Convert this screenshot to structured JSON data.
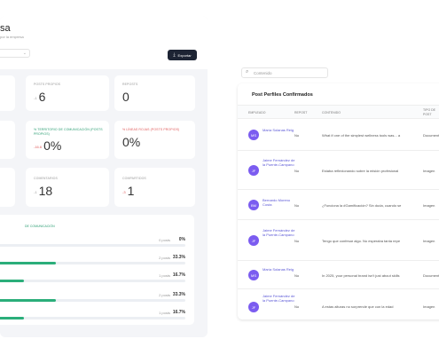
{
  "left": {
    "title": "sa",
    "subtitle": "por la empresa",
    "export_label": "Exportar",
    "export_icon": "download-icon",
    "cards": [
      {
        "label": "",
        "value": "",
        "delta": ""
      },
      {
        "label": "POSTS PROPIOS",
        "value": "6",
        "delta": "-1"
      },
      {
        "label": "REPOSTS",
        "value": "0",
        "delta": ""
      },
      {
        "label": "",
        "value": "",
        "delta": ""
      },
      {
        "label": "% TERRITORIO DE COMUNICACIÓN (POSTS PROPIOS)",
        "value": "0%",
        "delta": "-16.6"
      },
      {
        "label": "% LÍNEAS ROJAS (POSTS PROPIOS)",
        "value": "0%",
        "delta": ""
      },
      {
        "label": "",
        "value": "",
        "delta": ""
      },
      {
        "label": "COMENTARIOS",
        "value": "18",
        "delta": "-1"
      },
      {
        "label": "COMPARTIDOS",
        "value": "1",
        "delta": "-3"
      }
    ],
    "distribution": {
      "title": "DE COMUNICACIÓN",
      "rows": [
        {
          "posts": "0 posts",
          "pct": "0%",
          "fill": 0
        },
        {
          "posts": "2 posts",
          "pct": "33.3%",
          "fill": 0.333
        },
        {
          "posts": "1 posts",
          "pct": "16.7%",
          "fill": 0.167
        },
        {
          "posts": "2 posts",
          "pct": "33.3%",
          "fill": 0.333
        },
        {
          "posts": "1 posts",
          "pct": "16.7%",
          "fill": 0.167
        }
      ]
    }
  },
  "right": {
    "search_placeholder": "Contenido",
    "search_icon": "search-icon",
    "table_title": "Post Perfiles Confirmados",
    "columns": [
      "EMPLEADO",
      "REPOST",
      "CONTENIDO",
      "TIPO DE POST"
    ],
    "rows": [
      {
        "initials": "MS",
        "name": "María Solanas Reig",
        "repost": "No",
        "content": "What if one of the simplest wellness tools was... a",
        "type": "Documento"
      },
      {
        "initials": "JF",
        "name": "Jaime Fernández de la Puente-Campano",
        "repost": "No",
        "content": "Estaba reflexionando sobre la misión profesional",
        "type": "Imagen"
      },
      {
        "initials": "BM",
        "name": "Bernardo Moreno Costa",
        "repost": "No",
        "content": "¿Funciona la #Gamificación? Sin duda, cuando se",
        "type": "Imagen"
      },
      {
        "initials": "JF",
        "name": "Jaime Fernández de la Puente-Campano",
        "repost": "No",
        "content": "Tengo que confesar algo. No esperaba tanta repe",
        "type": "Imagen"
      },
      {
        "initials": "MS",
        "name": "María Solanas Reig",
        "repost": "No",
        "content": "In 2025, your personal brand isn't just about skills",
        "type": "Documento"
      },
      {
        "initials": "JF",
        "name": "Jaime Fernández de la Puente-Campano",
        "repost": "No",
        "content": "A estas alturas no sorprende que con la edad",
        "type": "Imagen"
      }
    ]
  }
}
